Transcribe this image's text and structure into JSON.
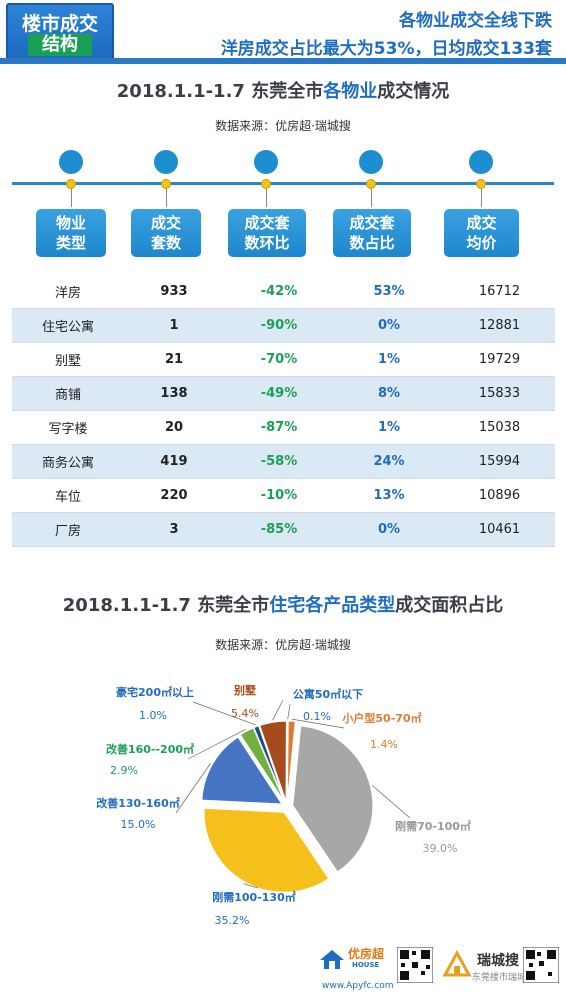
{
  "header": {
    "badge_line1": "楼市成交",
    "badge_line2": "结构",
    "headline1": "各物业成交全线下跌",
    "headline2": "洋房成交占比最大为53%，日均成交133套",
    "colors": {
      "blue": "#1f6dc0",
      "green": "#1aa055"
    }
  },
  "section1": {
    "title_pre": "2018.1.1-1.7  东莞全市",
    "title_hl": "各物业",
    "title_post": "成交情况",
    "source": "数据来源：优房超·瑞城搜",
    "columns": [
      {
        "line1": "物业",
        "line2": "类型"
      },
      {
        "line1": "成交",
        "line2": "套数"
      },
      {
        "line1": "成交套",
        "line2": "数环比"
      },
      {
        "line1": "成交套",
        "line2": "数占比"
      },
      {
        "line1": "成交",
        "line2": "均价"
      }
    ]
  },
  "chart_data": [
    {
      "type": "table",
      "columns": [
        "物业类型",
        "成交套数",
        "成交套数环比",
        "成交套数占比",
        "成交均价"
      ],
      "rows": [
        [
          "洋房",
          "933",
          "-42%",
          "53%",
          "16712"
        ],
        [
          "住宅公寓",
          "1",
          "-90%",
          "0%",
          "12881"
        ],
        [
          "别墅",
          "21",
          "-70%",
          "1%",
          "19729"
        ],
        [
          "商铺",
          "138",
          "-49%",
          "8%",
          "15833"
        ],
        [
          "写字楼",
          "20",
          "-87%",
          "1%",
          "15038"
        ],
        [
          "商务公寓",
          "419",
          "-58%",
          "24%",
          "15994"
        ],
        [
          "车位",
          "220",
          "-10%",
          "13%",
          "10896"
        ],
        [
          "厂房",
          "3",
          "-85%",
          "0%",
          "10461"
        ]
      ]
    },
    {
      "type": "pie",
      "title": "2018.1.1-1.7  东莞全市住宅各产品类型成交面积占比",
      "slices": [
        {
          "label": "公寓50㎡以下",
          "value": 0.1,
          "pct": "0.1%",
          "color": "#4a5a78"
        },
        {
          "label": "小户型50-70㎡",
          "value": 1.4,
          "pct": "1.4%",
          "color": "#e07a30"
        },
        {
          "label": "刚需70-100㎡",
          "value": 39.0,
          "pct": "39.0%",
          "color": "#a7a7a7"
        },
        {
          "label": "刚需100-130㎡",
          "value": 35.2,
          "pct": "35.2%",
          "color": "#f5c01a"
        },
        {
          "label": "改善130-160㎡",
          "value": 15.0,
          "pct": "15.0%",
          "color": "#4676c3"
        },
        {
          "label": "改善160--200㎡",
          "value": 2.9,
          "pct": "2.9%",
          "color": "#6fb040"
        },
        {
          "label": "豪宅200㎡以上",
          "value": 1.0,
          "pct": "1.0%",
          "color": "#1c4e86"
        },
        {
          "label": "别墅",
          "value": 5.4,
          "pct": "5.4%",
          "color": "#a64b1c"
        }
      ]
    }
  ],
  "section2": {
    "title_pre": "2018.1.1-1.7  东莞全市",
    "title_hl": "住宅各产品类型",
    "title_post": "成交面积占比",
    "source": "数据来源：优房超·瑞城搜"
  },
  "footer": {
    "brand1": "优房超",
    "brand1_sub": "HOUSE",
    "url": "www.Apyfc.com",
    "brand2": "瑞城搜",
    "brand2_sub": "东莞楼市瑞城搜"
  }
}
